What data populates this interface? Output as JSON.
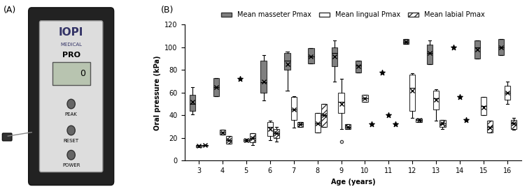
{
  "panel_a": {
    "label": "(A)",
    "device": {
      "brand": "IOPI",
      "maker": "MEDICAL",
      "model": "PRO",
      "display": "0",
      "buttons": [
        "PEAK",
        "RESET",
        "POWER"
      ]
    }
  },
  "chart_data": {
    "type": "box",
    "annotations": [
      "(B)"
    ],
    "x_label": "Age (years)",
    "y_label": "Oral pressure (kPa)",
    "categories": [
      "3",
      "4",
      "5",
      "6",
      "7",
      "8",
      "9",
      "10",
      "11",
      "12",
      "13",
      "14",
      "15",
      "16"
    ],
    "ylim": [
      0,
      120
    ],
    "yticks": [
      0,
      20,
      40,
      60,
      80,
      100,
      120
    ],
    "legend": "top",
    "series": [
      {
        "name": "Mean masseter Pmax",
        "color": "#808080",
        "values": [
          {
            "min": 41,
            "q1": 44,
            "median": 50,
            "q3": 58,
            "max": 65,
            "mean": 52
          },
          {
            "min": 57,
            "q1": 57,
            "median": 65,
            "q3": 73,
            "max": 73,
            "mean": 65
          },
          {
            "value": 72
          },
          {
            "min": 53,
            "q1": 60,
            "median": 69,
            "q3": 88,
            "max": 93,
            "mean": 70
          },
          {
            "min": 62,
            "q1": 80,
            "median": 88,
            "q3": 95,
            "max": 96,
            "mean": 85
          },
          {
            "min": 86,
            "q1": 86,
            "median": 92,
            "q3": 99,
            "max": 99,
            "mean": 92
          },
          {
            "min": 70,
            "q1": 83,
            "median": 95,
            "q3": 100,
            "max": 106,
            "mean": 92
          },
          {
            "min": 78,
            "q1": 78,
            "median": 84,
            "q3": 88,
            "max": 88,
            "mean": 83
          },
          {
            "value": 78
          },
          {
            "min": 103,
            "q1": 103,
            "median": 105,
            "q3": 107,
            "max": 107,
            "mean": 105
          },
          {
            "min": 85,
            "q1": 85,
            "median": 95,
            "q3": 102,
            "max": 106,
            "mean": 95
          },
          {
            "value": 100
          },
          {
            "min": 90,
            "q1": 90,
            "median": 100,
            "q3": 106,
            "max": 106,
            "mean": 98
          },
          {
            "min": 93,
            "q1": 93,
            "median": 100,
            "q3": 107,
            "max": 107,
            "mean": 100
          }
        ]
      },
      {
        "name": "Mean lingual Pmax",
        "color": "#ffffff",
        "values": [
          {
            "min": 12,
            "q1": 12,
            "median": 13,
            "q3": 14,
            "max": 14,
            "mean": 13
          },
          {
            "min": 23,
            "q1": 23,
            "median": 25,
            "q3": 27,
            "max": 27,
            "mean": 25
          },
          {
            "min": 17,
            "q1": 17,
            "median": 18,
            "q3": 19,
            "max": 19,
            "mean": 18
          },
          {
            "min": 18,
            "q1": 22,
            "median": 30,
            "q3": 34,
            "max": 35,
            "mean": 28
          },
          {
            "min": 29,
            "q1": 36,
            "median": 45,
            "q3": 56,
            "max": 57,
            "mean": 45
          },
          {
            "min": 25,
            "q1": 25,
            "median": 33,
            "q3": 42,
            "max": 42,
            "mean": 33
          },
          {
            "min": 28,
            "q1": 42,
            "median": 52,
            "q3": 60,
            "max": 72,
            "mean": 50,
            "outliers": [
              17
            ]
          },
          {
            "min": 52,
            "q1": 52,
            "median": 55,
            "q3": 58,
            "max": 58,
            "mean": 55
          },
          {
            "value": 40
          },
          {
            "min": 38,
            "q1": 44,
            "median": 64,
            "q3": 76,
            "max": 77,
            "mean": 62
          },
          {
            "min": 35,
            "q1": 45,
            "median": 55,
            "q3": 62,
            "max": 63,
            "mean": 54
          },
          {
            "value": 56
          },
          {
            "min": 40,
            "q1": 40,
            "median": 48,
            "q3": 56,
            "max": 56,
            "mean": 47
          },
          {
            "min": 50,
            "q1": 54,
            "median": 60,
            "q3": 66,
            "max": 70,
            "mean": 60
          }
        ]
      },
      {
        "name": "Mean labial Pmax",
        "color": "#ffffff",
        "values": [
          {
            "min": 13,
            "q1": 13,
            "median": 13.5,
            "q3": 14,
            "max": 14,
            "mean": 13.5
          },
          {
            "min": 15,
            "q1": 15,
            "median": 18,
            "q3": 22,
            "max": 22,
            "mean": 18
          },
          {
            "min": 14,
            "q1": 16,
            "median": 20,
            "q3": 24,
            "max": 24,
            "mean": 20
          },
          {
            "min": 17,
            "q1": 20,
            "median": 24,
            "q3": 28,
            "max": 30,
            "mean": 24
          },
          {
            "min": 30,
            "q1": 30,
            "median": 32,
            "q3": 34,
            "max": 34,
            "mean": 32
          },
          {
            "min": 30,
            "q1": 30,
            "median": 40,
            "q3": 50,
            "max": 50,
            "mean": 40
          },
          {
            "min": 28,
            "q1": 28,
            "median": 30,
            "q3": 32,
            "max": 32,
            "mean": 30
          },
          {
            "value": 32
          },
          {
            "value": 32
          },
          {
            "min": 34,
            "q1": 34,
            "median": 36,
            "q3": 37,
            "max": 37,
            "mean": 36
          },
          {
            "min": 28,
            "q1": 30,
            "median": 33,
            "q3": 36,
            "max": 36,
            "mean": 33
          },
          {
            "value": 36
          },
          {
            "min": 25,
            "q1": 25,
            "median": 30,
            "q3": 35,
            "max": 35,
            "mean": 29
          },
          {
            "min": 27,
            "q1": 28,
            "median": 33,
            "q3": 36,
            "max": 38,
            "mean": 33
          }
        ]
      }
    ]
  }
}
